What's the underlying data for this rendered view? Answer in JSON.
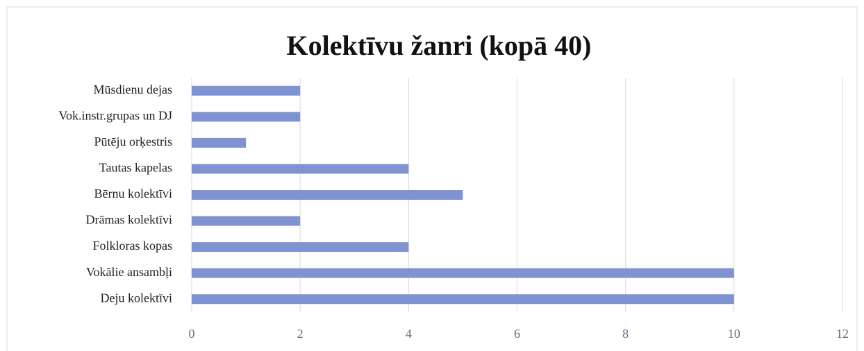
{
  "chart_data": {
    "type": "barh",
    "title": "Kolektīvu žanri (kopā 40)",
    "categories": [
      "Deju kolektīvi",
      "Vokālie ansambļi",
      "Folkloras kopas",
      "Drāmas kolektīvi",
      "Bērnu kolektīvi",
      "Tautas kapelas",
      "Pūtēju orķestris",
      "Vok.instr.grupas un DJ",
      "Mūsdienu dejas"
    ],
    "values": [
      10,
      10,
      4,
      2,
      5,
      4,
      1,
      2,
      2
    ],
    "color": "#7f93d2",
    "xlim": [
      0,
      12
    ],
    "xticks": [
      0,
      2,
      4,
      6,
      8,
      10,
      12
    ],
    "grid": true
  }
}
